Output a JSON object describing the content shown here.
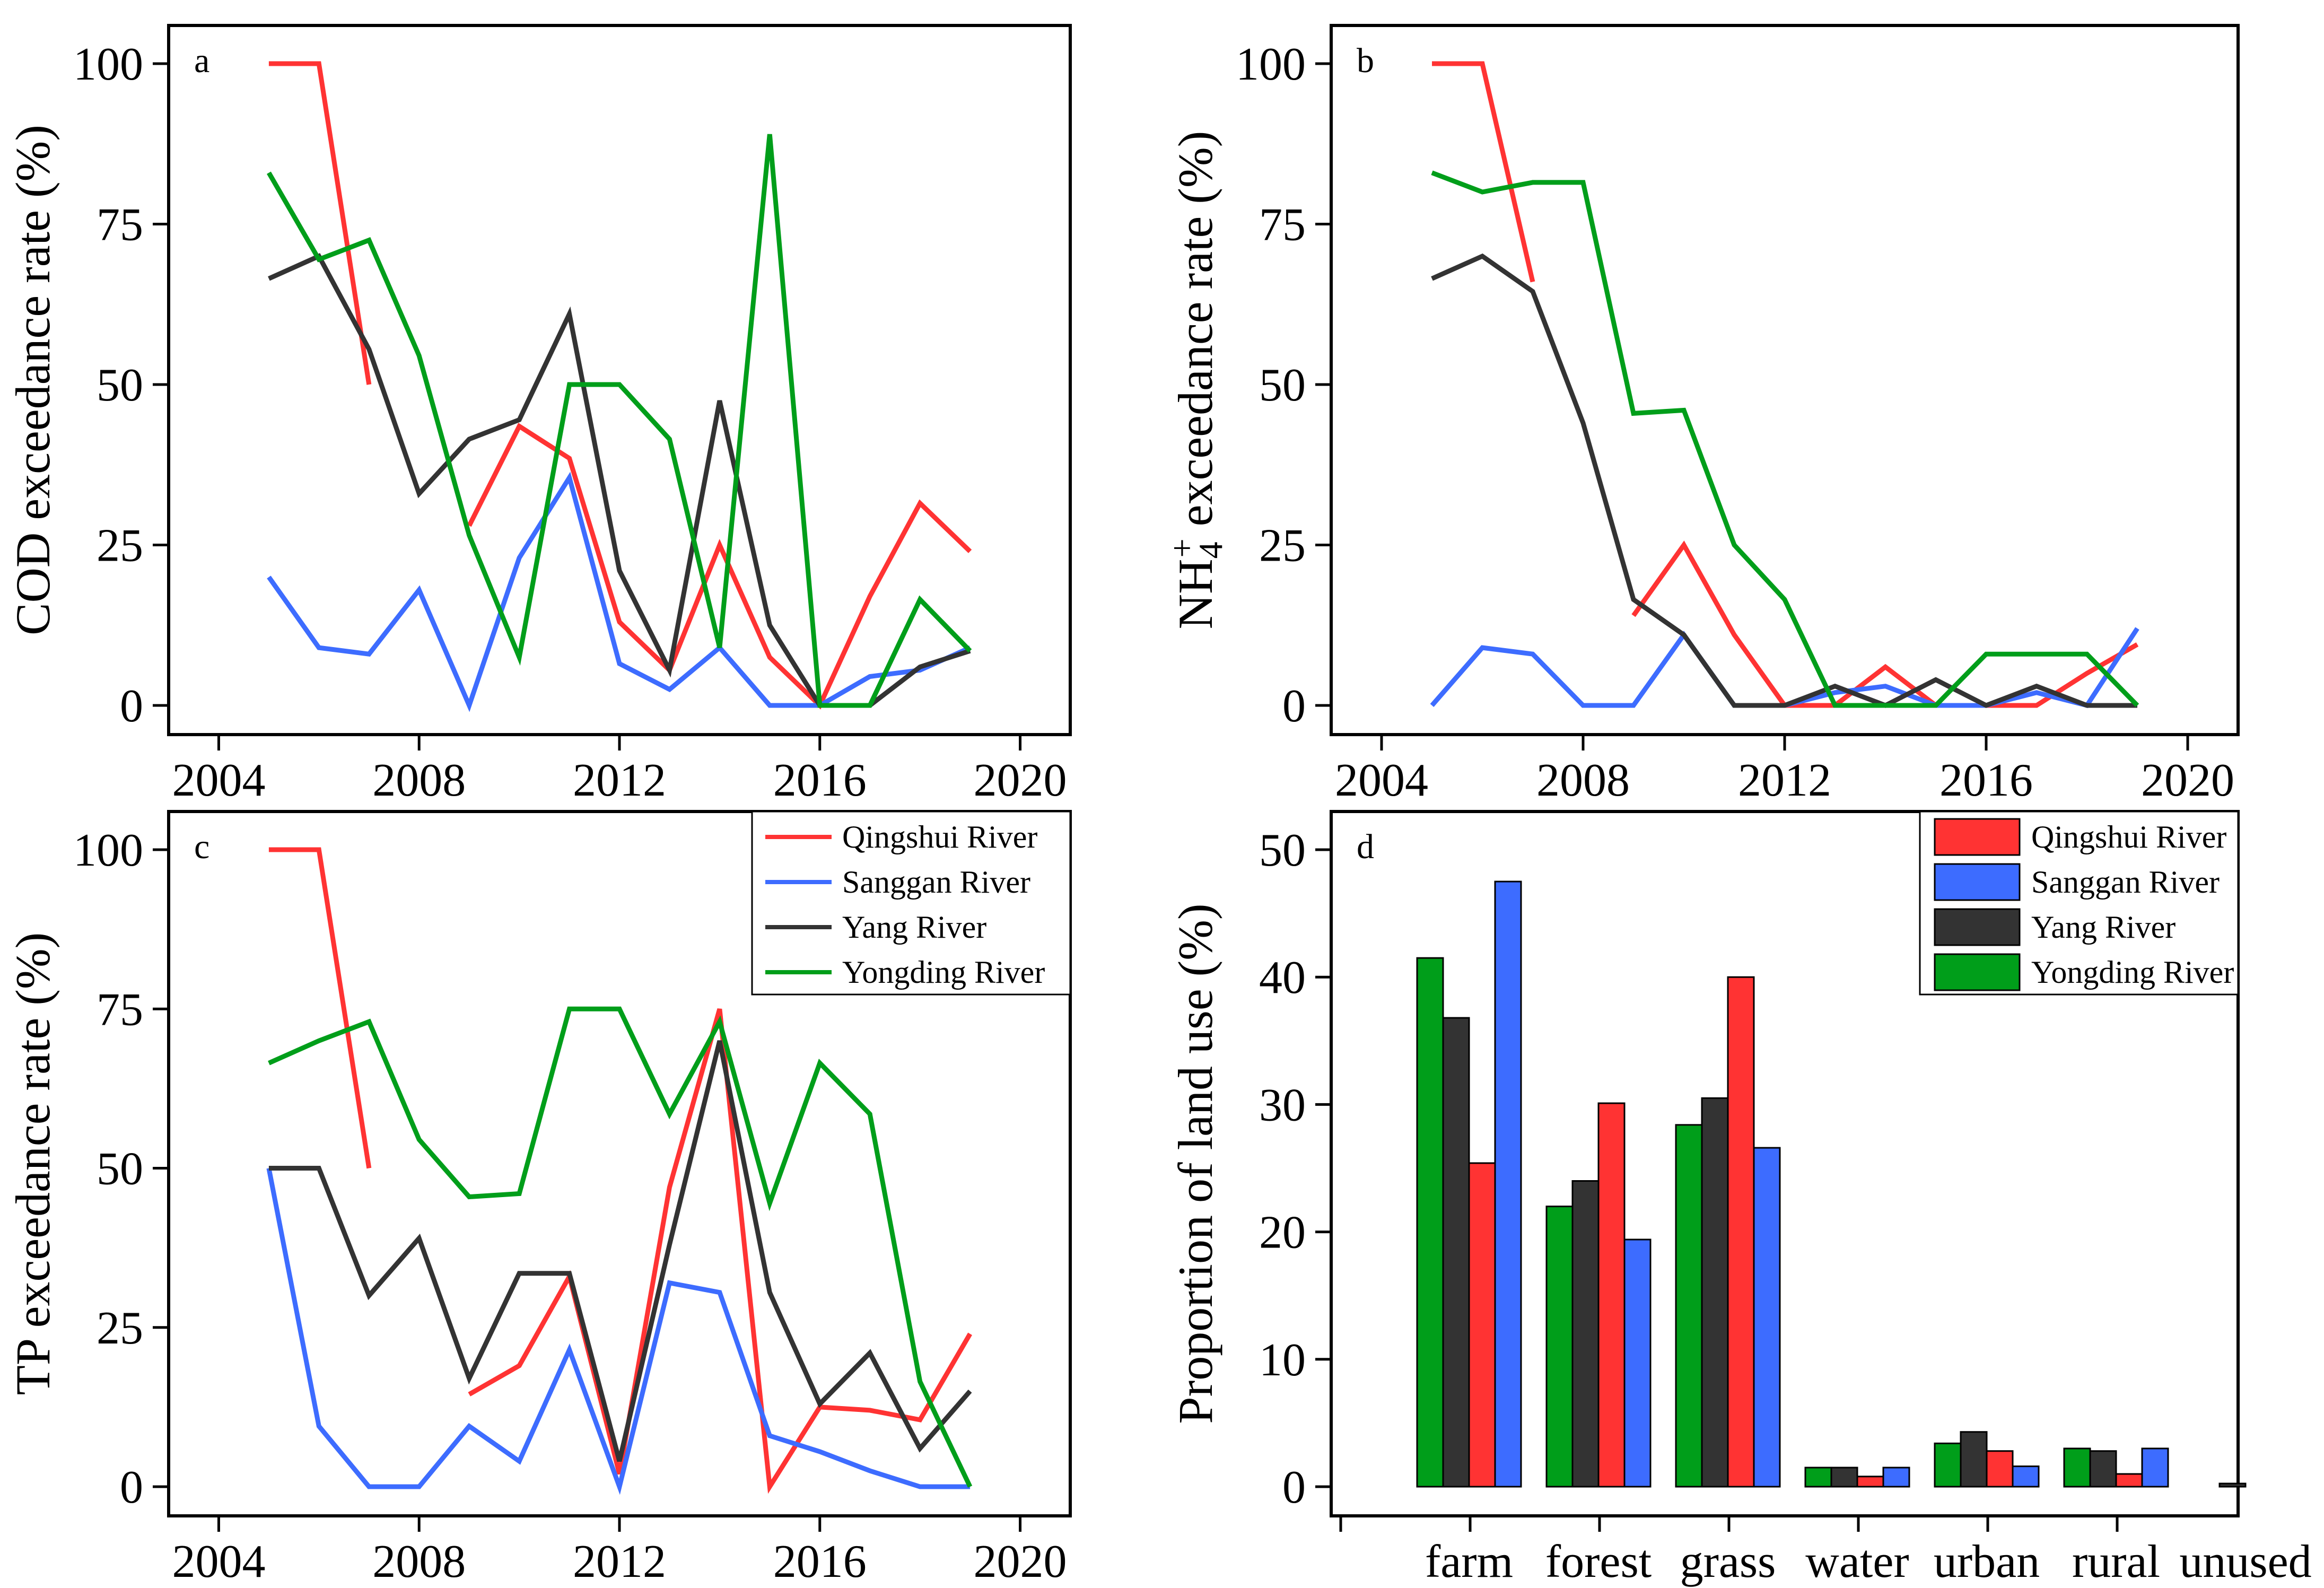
{
  "colors": {
    "qingshui": "#ff3333",
    "sanggan": "#3d6cff",
    "yang": "#333333",
    "yongding": "#009e1a"
  },
  "chart_data": [
    {
      "panel": "a",
      "type": "line",
      "ylabel": "COD exceedance rate (%)",
      "xlim": [
        2003,
        2021
      ],
      "ylim": [
        0,
        100
      ],
      "xticks": [
        2004,
        2008,
        2012,
        2016,
        2020
      ],
      "yticks": [
        0,
        25,
        50,
        75,
        100
      ],
      "series": [
        {
          "name": "Qingshui River",
          "color_key": "qingshui",
          "segments": [
            [
              [
                2005,
                100
              ],
              [
                2006,
                100
              ],
              [
                2007,
                50
              ]
            ],
            [
              [
                2009,
                28
              ],
              [
                2010,
                43.5
              ],
              [
                2011,
                38.5
              ],
              [
                2012,
                13
              ],
              [
                2013,
                5.5
              ],
              [
                2014,
                25
              ],
              [
                2015,
                7.5
              ],
              [
                2016,
                0
              ],
              [
                2017,
                17
              ],
              [
                2018,
                31.5
              ],
              [
                2019,
                24
              ]
            ]
          ]
        },
        {
          "name": "Sanggan River",
          "color_key": "sanggan",
          "segments": [
            [
              [
                2005,
                20
              ],
              [
                2006,
                9
              ],
              [
                2007,
                8
              ],
              [
                2008,
                18
              ],
              [
                2009,
                0
              ],
              [
                2010,
                23
              ],
              [
                2011,
                35.5
              ],
              [
                2012,
                6.5
              ],
              [
                2013,
                2.5
              ],
              [
                2014,
                9
              ],
              [
                2015,
                0
              ],
              [
                2016,
                0
              ],
              [
                2017,
                4.5
              ],
              [
                2018,
                5.5
              ],
              [
                2019,
                9
              ]
            ]
          ]
        },
        {
          "name": "Yang River",
          "color_key": "yang",
          "segments": [
            [
              [
                2005,
                66.5
              ],
              [
                2006,
                70
              ],
              [
                2007,
                55.5
              ],
              [
                2008,
                33
              ],
              [
                2009,
                41.5
              ],
              [
                2010,
                44.5
              ],
              [
                2011,
                61
              ],
              [
                2012,
                21
              ],
              [
                2013,
                5.5
              ],
              [
                2014,
                47.5
              ],
              [
                2015,
                12.5
              ],
              [
                2016,
                0
              ],
              [
                2017,
                0
              ],
              [
                2018,
                6
              ],
              [
                2019,
                8.5
              ]
            ]
          ]
        },
        {
          "name": "Yongding River",
          "color_key": "yongding",
          "segments": [
            [
              [
                2005,
                83
              ],
              [
                2006,
                69.5
              ],
              [
                2007,
                72.5
              ],
              [
                2008,
                54.5
              ],
              [
                2009,
                26.5
              ],
              [
                2010,
                7.5
              ],
              [
                2011,
                50
              ],
              [
                2012,
                50
              ],
              [
                2013,
                41.5
              ],
              [
                2014,
                9
              ],
              [
                2015,
                89
              ],
              [
                2016,
                0
              ],
              [
                2017,
                0
              ],
              [
                2018,
                16.5
              ],
              [
                2019,
                8.5
              ]
            ]
          ]
        }
      ]
    },
    {
      "panel": "b",
      "type": "line",
      "ylabel_main": "NH",
      "ylabel_sub": "4",
      "ylabel_sup": "+",
      "ylabel_rest": " exceedance rate (%)",
      "xlim": [
        2003,
        2021
      ],
      "ylim": [
        0,
        100
      ],
      "xticks": [
        2004,
        2008,
        2012,
        2016,
        2020
      ],
      "yticks": [
        0,
        25,
        50,
        75,
        100
      ],
      "series": [
        {
          "name": "Qingshui River",
          "color_key": "qingshui",
          "segments": [
            [
              [
                2005,
                100
              ],
              [
                2006,
                100
              ],
              [
                2007,
                66
              ]
            ],
            [
              [
                2009,
                14
              ],
              [
                2010,
                25
              ],
              [
                2011,
                11
              ],
              [
                2012,
                0
              ],
              [
                2013,
                0
              ],
              [
                2014,
                6
              ],
              [
                2015,
                0
              ],
              [
                2016,
                0
              ],
              [
                2017,
                0
              ],
              [
                2018,
                5
              ],
              [
                2019,
                9.5
              ]
            ]
          ]
        },
        {
          "name": "Sanggan River",
          "color_key": "sanggan",
          "segments": [
            [
              [
                2005,
                0
              ],
              [
                2006,
                9
              ],
              [
                2007,
                8
              ],
              [
                2008,
                0
              ],
              [
                2009,
                0
              ],
              [
                2010,
                11
              ],
              [
                2011,
                0
              ],
              [
                2012,
                0
              ],
              [
                2013,
                2
              ],
              [
                2014,
                3
              ],
              [
                2015,
                0
              ],
              [
                2016,
                0
              ],
              [
                2017,
                2
              ],
              [
                2018,
                0
              ],
              [
                2019,
                12
              ]
            ]
          ]
        },
        {
          "name": "Yang River",
          "color_key": "yang",
          "segments": [
            [
              [
                2005,
                66.5
              ],
              [
                2006,
                70
              ],
              [
                2007,
                64.5
              ],
              [
                2008,
                44
              ],
              [
                2009,
                16.5
              ],
              [
                2010,
                11
              ],
              [
                2011,
                0
              ],
              [
                2012,
                0
              ],
              [
                2013,
                3
              ],
              [
                2014,
                0
              ],
              [
                2015,
                4
              ],
              [
                2016,
                0
              ],
              [
                2017,
                3
              ],
              [
                2018,
                0
              ],
              [
                2019,
                0
              ]
            ]
          ]
        },
        {
          "name": "Yongding River",
          "color_key": "yongding",
          "segments": [
            [
              [
                2005,
                83
              ],
              [
                2006,
                80
              ],
              [
                2007,
                81.5
              ],
              [
                2008,
                81.5
              ],
              [
                2009,
                45.5
              ],
              [
                2010,
                46
              ],
              [
                2011,
                25
              ],
              [
                2012,
                16.5
              ],
              [
                2013,
                0
              ],
              [
                2014,
                0
              ],
              [
                2015,
                0
              ],
              [
                2016,
                8
              ],
              [
                2017,
                8
              ],
              [
                2018,
                8
              ],
              [
                2019,
                0
              ]
            ]
          ]
        }
      ]
    },
    {
      "panel": "c",
      "type": "line",
      "ylabel": "TP exceedance rate (%)",
      "xlim": [
        2003,
        2021
      ],
      "ylim": [
        0,
        100
      ],
      "xticks": [
        2004,
        2008,
        2012,
        2016,
        2020
      ],
      "yticks": [
        0,
        25,
        50,
        75,
        100
      ],
      "legend": [
        "Qingshui River",
        "Sanggan River",
        "Yang River",
        "Yongding River"
      ],
      "legend_position": "top-right",
      "series": [
        {
          "name": "Qingshui River",
          "color_key": "qingshui",
          "segments": [
            [
              [
                2005,
                100
              ],
              [
                2006,
                100
              ],
              [
                2007,
                50
              ]
            ],
            [
              [
                2009,
                14.5
              ],
              [
                2010,
                19
              ],
              [
                2011,
                33
              ],
              [
                2012,
                2
              ],
              [
                2013,
                47
              ],
              [
                2014,
                75
              ],
              [
                2015,
                0
              ],
              [
                2016,
                12.5
              ],
              [
                2017,
                12
              ],
              [
                2018,
                10.5
              ],
              [
                2019,
                24
              ]
            ]
          ]
        },
        {
          "name": "Sanggan River",
          "color_key": "sanggan",
          "segments": [
            [
              [
                2005,
                50
              ],
              [
                2006,
                9.5
              ],
              [
                2007,
                0
              ],
              [
                2008,
                0
              ],
              [
                2009,
                9.5
              ],
              [
                2010,
                4
              ],
              [
                2011,
                21.5
              ],
              [
                2012,
                0
              ],
              [
                2013,
                32
              ],
              [
                2014,
                30.5
              ],
              [
                2015,
                8
              ],
              [
                2016,
                5.5
              ],
              [
                2017,
                2.5
              ],
              [
                2018,
                0
              ],
              [
                2019,
                0
              ]
            ]
          ]
        },
        {
          "name": "Yang River",
          "color_key": "yang",
          "segments": [
            [
              [
                2005,
                50
              ],
              [
                2006,
                50
              ],
              [
                2007,
                30
              ],
              [
                2008,
                39
              ],
              [
                2009,
                17
              ],
              [
                2010,
                33.5
              ],
              [
                2011,
                33.5
              ],
              [
                2012,
                4
              ],
              [
                2013,
                38
              ],
              [
                2014,
                70
              ],
              [
                2015,
                30.5
              ],
              [
                2016,
                13
              ],
              [
                2017,
                21
              ],
              [
                2018,
                6
              ],
              [
                2019,
                15
              ]
            ]
          ]
        },
        {
          "name": "Yongding River",
          "color_key": "yongding",
          "segments": [
            [
              [
                2005,
                66.5
              ],
              [
                2006,
                70
              ],
              [
                2007,
                73
              ],
              [
                2008,
                54.5
              ],
              [
                2009,
                45.5
              ],
              [
                2010,
                46
              ],
              [
                2011,
                75
              ],
              [
                2012,
                75
              ],
              [
                2013,
                58.5
              ],
              [
                2014,
                73
              ],
              [
                2015,
                44.5
              ],
              [
                2016,
                66.5
              ],
              [
                2017,
                58.5
              ],
              [
                2018,
                16.5
              ],
              [
                2019,
                0
              ]
            ]
          ]
        }
      ]
    },
    {
      "panel": "d",
      "type": "bar",
      "ylabel": "Proportion of land use (%)",
      "ylim": [
        0,
        50
      ],
      "yticks": [
        0,
        10,
        20,
        30,
        40,
        50
      ],
      "categories": [
        "farm",
        "forest",
        "grass",
        "water",
        "urban",
        "rural",
        "unused"
      ],
      "legend": [
        "Qingshui River",
        "Sanggan River",
        "Yang River",
        "Yongding River"
      ],
      "legend_position": "top-right",
      "series": [
        {
          "name": "Yongding River",
          "color_key": "yongding",
          "values": [
            41.5,
            22,
            28.4,
            1.5,
            3.4,
            3.0,
            0
          ]
        },
        {
          "name": "Yang River",
          "color_key": "yang",
          "values": [
            36.8,
            24,
            30.5,
            1.5,
            4.3,
            2.8,
            0.25
          ]
        },
        {
          "name": "Qingshui River",
          "color_key": "qingshui",
          "values": [
            25.4,
            30.1,
            40,
            0.8,
            2.8,
            1.0,
            0
          ]
        },
        {
          "name": "Sanggan River",
          "color_key": "sanggan",
          "values": [
            47.5,
            19.4,
            26.6,
            1.5,
            1.6,
            3.0,
            0
          ]
        }
      ]
    }
  ]
}
